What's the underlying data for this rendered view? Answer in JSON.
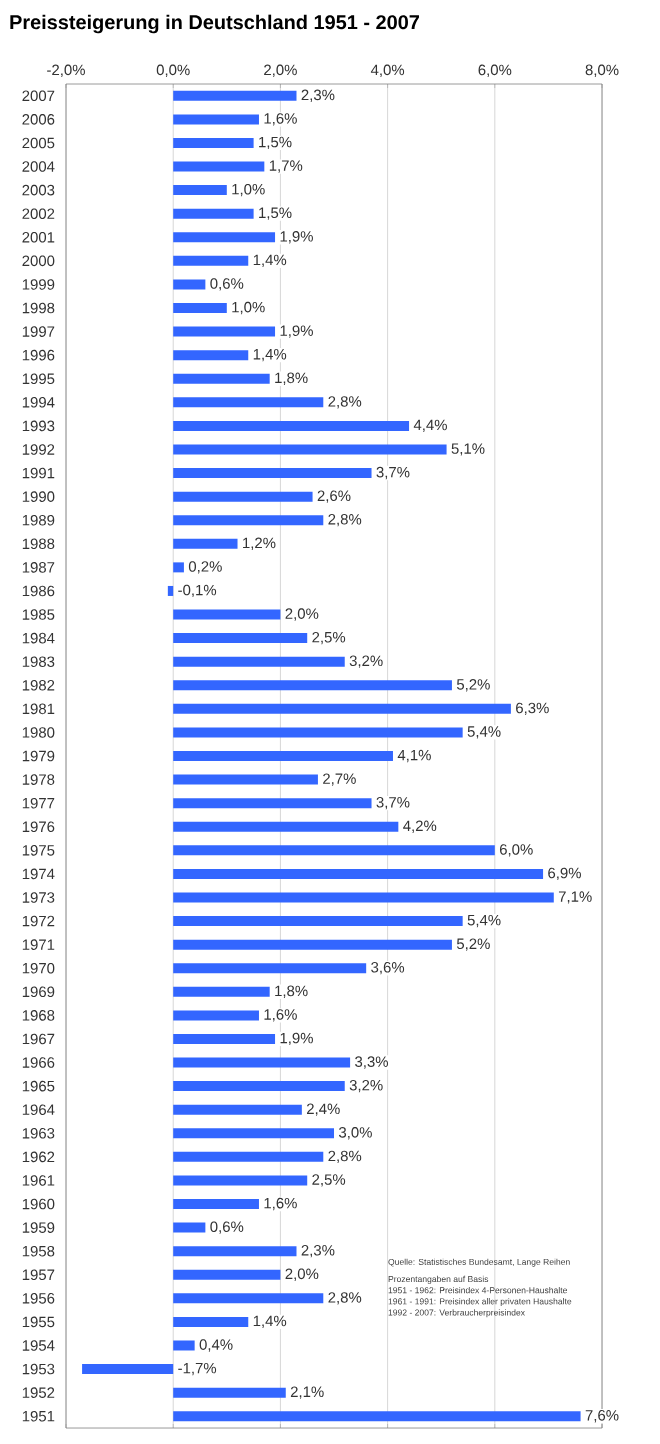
{
  "chart_data": {
    "type": "bar",
    "orientation": "horizontal",
    "title": "Preissteigerung in Deutschland 1951 - 2007",
    "categories": [
      "2007",
      "2006",
      "2005",
      "2004",
      "2003",
      "2002",
      "2001",
      "2000",
      "1999",
      "1998",
      "1997",
      "1996",
      "1995",
      "1994",
      "1993",
      "1992",
      "1991",
      "1990",
      "1989",
      "1988",
      "1987",
      "1986",
      "1985",
      "1984",
      "1983",
      "1982",
      "1981",
      "1980",
      "1979",
      "1978",
      "1977",
      "1976",
      "1975",
      "1974",
      "1973",
      "1972",
      "1971",
      "1970",
      "1969",
      "1968",
      "1967",
      "1966",
      "1965",
      "1964",
      "1963",
      "1962",
      "1961",
      "1960",
      "1959",
      "1958",
      "1957",
      "1956",
      "1955",
      "1954",
      "1953",
      "1952",
      "1951"
    ],
    "values": [
      2.3,
      1.6,
      1.5,
      1.7,
      1.0,
      1.5,
      1.9,
      1.4,
      0.6,
      1.0,
      1.9,
      1.4,
      1.8,
      2.8,
      4.4,
      5.1,
      3.7,
      2.6,
      2.8,
      1.2,
      0.2,
      -0.1,
      2.0,
      2.5,
      3.2,
      5.2,
      6.3,
      5.4,
      4.1,
      2.7,
      3.7,
      4.2,
      6.0,
      6.9,
      7.1,
      5.4,
      5.2,
      3.6,
      1.8,
      1.6,
      1.9,
      3.3,
      3.2,
      2.4,
      3.0,
      2.8,
      2.5,
      1.6,
      0.6,
      2.3,
      2.0,
      2.8,
      1.4,
      0.4,
      -1.7,
      2.1,
      7.6
    ],
    "value_labels": [
      "2,3%",
      "1,6%",
      "1,5%",
      "1,7%",
      "1,0%",
      "1,5%",
      "1,9%",
      "1,4%",
      "0,6%",
      "1,0%",
      "1,9%",
      "1,4%",
      "1,8%",
      "2,8%",
      "4,4%",
      "5,1%",
      "3,7%",
      "2,6%",
      "2,8%",
      "1,2%",
      "0,2%",
      "-0,1%",
      "2,0%",
      "2,5%",
      "3,2%",
      "5,2%",
      "6,3%",
      "5,4%",
      "4,1%",
      "2,7%",
      "3,7%",
      "4,2%",
      "6,0%",
      "6,9%",
      "7,1%",
      "5,4%",
      "5,2%",
      "3,6%",
      "1,8%",
      "1,6%",
      "1,9%",
      "3,3%",
      "3,2%",
      "2,4%",
      "3,0%",
      "2,8%",
      "2,5%",
      "1,6%",
      "0,6%",
      "2,3%",
      "2,0%",
      "2,8%",
      "1,4%",
      "0,4%",
      "-1,7%",
      "2,1%",
      "7,6%"
    ],
    "color": "#3366ff",
    "xlim": [
      -2,
      8
    ],
    "xticks": [
      {
        "value": -2,
        "label": "-2,0%"
      },
      {
        "value": 0,
        "label": "0,0%"
      },
      {
        "value": 2,
        "label": "2,0%"
      },
      {
        "value": 4,
        "label": "4,0%"
      },
      {
        "value": 6,
        "label": "6,0%"
      },
      {
        "value": 8,
        "label": "8,0%"
      }
    ],
    "grid": "x",
    "annotations": [
      "Quelle: Statistisches Bundesamt, Lange Reihen",
      "Prozentangaben auf Basis",
      "1951 - 1962: Preisindex 4-Personen-Haushalte",
      "1961 - 1991: Preisindex aller privaten Haushalte",
      "1992 - 2007: Verbraucherpreisindex"
    ]
  }
}
